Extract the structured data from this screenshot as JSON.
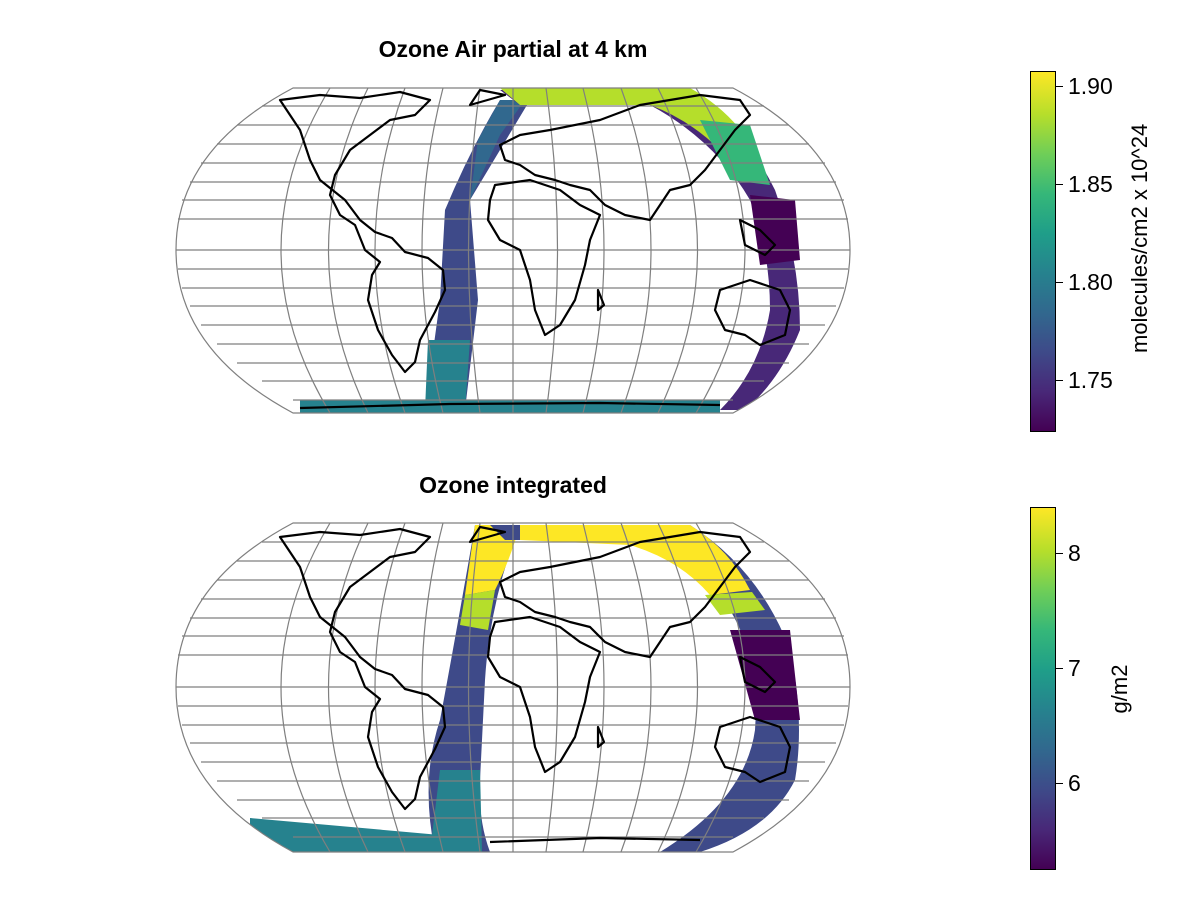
{
  "panels": [
    {
      "title": "Ozone Air partial at 4 km",
      "colorbar": {
        "label": "molecules/cm2 x 10^24",
        "ticks": [
          "1.90",
          "1.85",
          "1.80",
          "1.75"
        ],
        "range": [
          1.724,
          1.906
        ]
      }
    },
    {
      "title": "Ozone integrated",
      "colorbar": {
        "label": "g/m2",
        "ticks": [
          "8",
          "7",
          "6"
        ],
        "range": [
          5.2,
          8.4
        ]
      }
    }
  ],
  "colors": {
    "viridis_low": "#440154",
    "viridis_mid": "#21918c",
    "viridis_high": "#fde725",
    "graticule": "#7f7f7f",
    "coastline": "#000000"
  }
}
